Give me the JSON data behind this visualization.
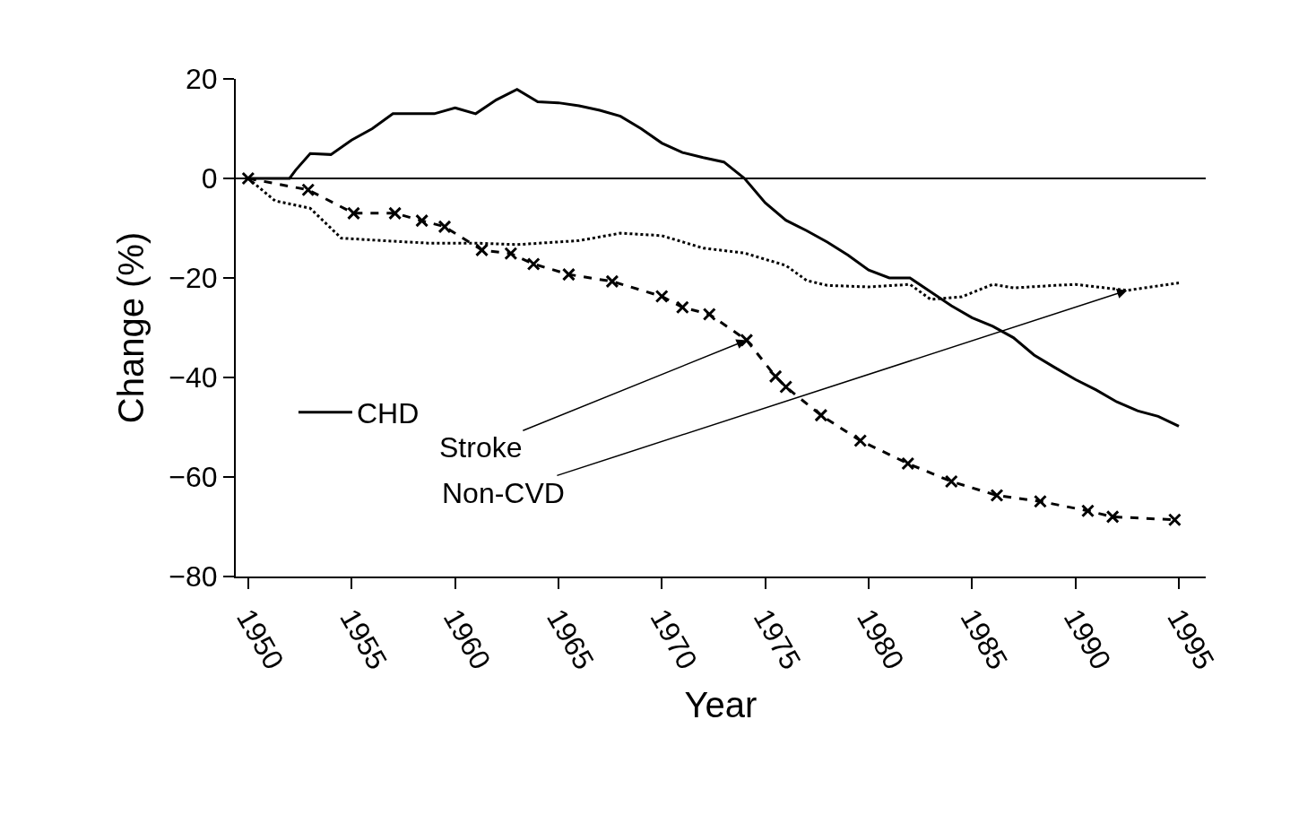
{
  "chart_data": {
    "type": "line",
    "xlabel": "Year",
    "ylabel": "Change (%)",
    "xlim": [
      1949.4,
      1996.3
    ],
    "xticks": [
      1950,
      1955,
      1960,
      1965,
      1970,
      1975,
      1980,
      1985,
      1990,
      1995
    ],
    "ylim": [
      -80,
      20
    ],
    "yticks": [
      -80,
      -60,
      -40,
      -20,
      0,
      20
    ],
    "legend": "left",
    "ref_lines": [
      {
        "axis": "y",
        "value": 0,
        "color": "#000000"
      }
    ],
    "annotations": [
      {
        "text": "Stroke",
        "x": 1974.1,
        "y": -32.5
      },
      {
        "text": "Non-CVD",
        "x": 1992.5,
        "y": -22.5
      }
    ],
    "series": [
      {
        "name": "CHD",
        "color": "#000000",
        "line_style": "solid",
        "marker": "none",
        "x": [
          1950,
          1951,
          1952,
          1952.3,
          1953,
          1954,
          1955,
          1956,
          1957,
          1958,
          1959,
          1960,
          1961,
          1962,
          1963,
          1964,
          1965,
          1966,
          1967,
          1968,
          1969,
          1970,
          1971,
          1972,
          1973,
          1974,
          1975,
          1976,
          1977,
          1978,
          1979,
          1980,
          1981,
          1982,
          1983,
          1984,
          1985,
          1986,
          1987,
          1988,
          1989,
          1990,
          1991,
          1992,
          1993,
          1994,
          1995
        ],
        "values": [
          0,
          0,
          0,
          1.7,
          5,
          4.8,
          7.7,
          10,
          13,
          13,
          13,
          14.2,
          13,
          15.8,
          17.9,
          15.4,
          15.2,
          14.6,
          13.7,
          12.5,
          10,
          7.1,
          5.2,
          4.2,
          3.3,
          0,
          -4.9,
          -8.4,
          -10.5,
          -12.8,
          -15.4,
          -18.4,
          -20,
          -20,
          -22.8,
          -25.6,
          -28,
          -29.7,
          -32,
          -35.5,
          -38,
          -40.4,
          -42.5,
          -44.9,
          -46.7,
          -47.8,
          -49.8
        ]
      },
      {
        "color": "#000000",
        "line_style": "dashed",
        "marker": "cross",
        "x": [
          1950,
          1952.9,
          1955.1,
          1957.1,
          1958.4,
          1959.5,
          1961.3,
          1962.7,
          1963.8,
          1965.5,
          1967.6,
          1970.0,
          1971.0,
          1972.3,
          1974.1,
          1975.5,
          1976.0,
          1977.7,
          1979.6,
          1981.9,
          1984.0,
          1986.2,
          1988.3,
          1990.6,
          1991.8,
          1994.8
        ],
        "values": [
          0,
          -2.3,
          -7,
          -7,
          -8.5,
          -9.7,
          -14.4,
          -15.1,
          -17.2,
          -19.3,
          -20.7,
          -23.7,
          -25.9,
          -27.3,
          -32.5,
          -39.8,
          -41.9,
          -47.6,
          -52.7,
          -57.3,
          -60.9,
          -63.7,
          -64.9,
          -66.8,
          -68,
          -68.6
        ]
      },
      {
        "color": "#000000",
        "line_style": "dotted",
        "marker": "none",
        "x": [
          1950,
          1951.3,
          1953,
          1954.5,
          1956.5,
          1958.7,
          1961,
          1963,
          1966,
          1968,
          1970,
          1972,
          1974,
          1976,
          1977,
          1978,
          1980,
          1982,
          1983,
          1984.5,
          1986,
          1987,
          1989,
          1990,
          1992.5,
          1995
        ],
        "values": [
          0,
          -4.5,
          -6,
          -12,
          -12.5,
          -13,
          -13,
          -13.3,
          -12.5,
          -11,
          -11.5,
          -14,
          -15,
          -17.5,
          -20.5,
          -21.5,
          -21.8,
          -21.3,
          -24.3,
          -23.8,
          -21.3,
          -22,
          -21.5,
          -21.3,
          -22.5,
          -21
        ]
      }
    ]
  }
}
